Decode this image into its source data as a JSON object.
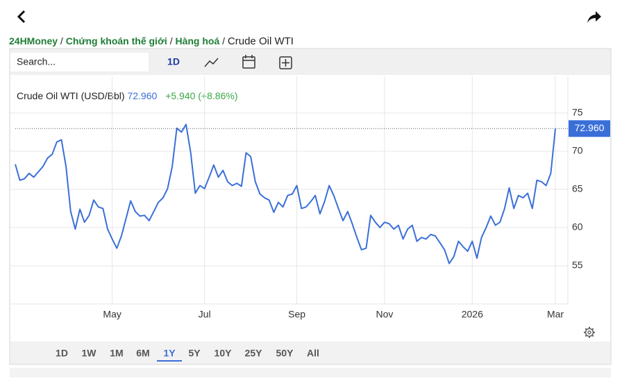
{
  "breadcrumb": {
    "items": [
      "24HMoney",
      "Chứng khoán thế giới",
      "Hàng hoá",
      "Crude Oil WTI"
    ],
    "separator": "/"
  },
  "toolbar": {
    "search_placeholder": "Search...",
    "interval": "1D"
  },
  "quote": {
    "name": "Crude Oil WTI (USD/Bbl)",
    "price": "72.960",
    "change": "+5.940 (+8.86%)"
  },
  "ranges": [
    "1D",
    "1W",
    "1M",
    "6M",
    "1Y",
    "5Y",
    "10Y",
    "25Y",
    "50Y",
    "All"
  ],
  "selected_range": "1Y",
  "chart_data": {
    "type": "line",
    "categories": [
      null,
      null,
      null,
      null,
      null,
      null,
      null,
      null,
      null,
      null,
      null,
      null,
      null,
      null,
      null,
      null,
      null,
      null,
      null,
      null,
      null,
      "May",
      null,
      null,
      null,
      null,
      null,
      null,
      null,
      null,
      null,
      null,
      null,
      null,
      null,
      null,
      null,
      null,
      null,
      null,
      null,
      "Jul",
      null,
      null,
      null,
      null,
      null,
      null,
      null,
      null,
      null,
      null,
      null,
      null,
      null,
      null,
      null,
      null,
      null,
      null,
      null,
      "Sep",
      null,
      null,
      null,
      null,
      null,
      null,
      null,
      null,
      null,
      null,
      null,
      null,
      null,
      null,
      null,
      null,
      null,
      null,
      "Nov",
      null,
      null,
      null,
      null,
      null,
      null,
      null,
      null,
      null,
      null,
      null,
      null,
      null,
      null,
      null,
      null,
      null,
      null,
      "2026",
      null,
      null,
      null,
      null,
      null,
      null,
      null,
      null,
      null,
      null,
      null,
      null,
      null,
      null,
      null,
      null,
      null,
      "Mar"
    ],
    "series": [
      {
        "name": "Crude Oil WTI",
        "color": "#3a6fd8",
        "values": [
          68.3,
          66.2,
          66.4,
          67.1,
          66.6,
          67.3,
          68.0,
          69.1,
          69.6,
          71.2,
          71.5,
          68.0,
          62.1,
          59.8,
          62.4,
          60.7,
          61.6,
          63.6,
          62.7,
          62.5,
          59.8,
          58.5,
          57.3,
          58.9,
          61.2,
          63.5,
          62.1,
          61.5,
          61.6,
          60.9,
          62.1,
          63.3,
          63.9,
          65.1,
          68.0,
          73.0,
          72.5,
          73.5,
          69.8,
          64.5,
          65.5,
          65.1,
          66.6,
          68.2,
          66.6,
          67.5,
          66.0,
          65.5,
          65.8,
          65.4,
          69.8,
          69.3,
          66.0,
          64.4,
          63.9,
          63.6,
          62.0,
          63.3,
          62.7,
          64.2,
          64.4,
          65.5,
          62.5,
          62.7,
          63.4,
          64.2,
          61.8,
          63.4,
          65.5,
          64.2,
          62.5,
          60.9,
          62.1,
          60.5,
          58.7,
          57.1,
          57.3,
          61.6,
          60.7,
          60.0,
          60.7,
          60.5,
          59.8,
          60.3,
          58.5,
          59.8,
          60.3,
          58.2,
          58.7,
          58.5,
          59.1,
          58.9,
          58.0,
          57.1,
          55.3,
          56.2,
          58.2,
          57.5,
          56.9,
          58.2,
          56.0,
          58.7,
          60.0,
          61.5,
          60.3,
          60.7,
          62.5,
          65.2,
          62.5,
          64.2,
          63.9,
          64.5,
          62.5,
          66.2,
          66.0,
          65.5,
          67.1,
          72.96
        ]
      }
    ],
    "ylim": [
      50,
      79.8
    ],
    "yticks": [
      55,
      60,
      65,
      70,
      75
    ],
    "grid": true
  }
}
